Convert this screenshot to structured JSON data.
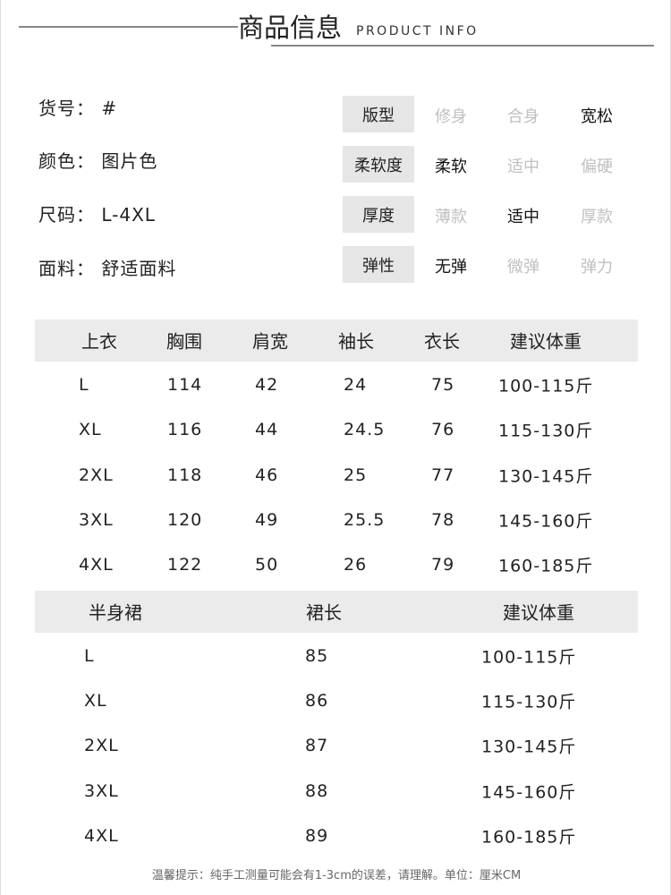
{
  "header": {
    "title": "商品信息",
    "subtitle": "PRODUCT INFO"
  },
  "info": [
    {
      "label": "货号",
      "value": "#"
    },
    {
      "label": "颜色",
      "value": "图片色"
    },
    {
      "label": "尺码",
      "value": "L-4XL"
    },
    {
      "label": "面料",
      "value": "舒适面料"
    }
  ],
  "attributes": [
    {
      "label": "版型",
      "options": [
        "修身",
        "合身",
        "宽松"
      ],
      "selected": 2
    },
    {
      "label": "柔软度",
      "options": [
        "柔软",
        "适中",
        "偏硬"
      ],
      "selected": 0
    },
    {
      "label": "厚度",
      "options": [
        "薄款",
        "适中",
        "厚款"
      ],
      "selected": 1
    },
    {
      "label": "弹性",
      "options": [
        "无弹",
        "微弹",
        "弹力"
      ],
      "selected": 0
    }
  ],
  "top_table": {
    "headers": [
      "上衣",
      "胸围",
      "肩宽",
      "袖长",
      "衣长",
      "建议体重"
    ],
    "rows": [
      [
        "L",
        "114",
        "42",
        "24",
        "75",
        "100-115斤"
      ],
      [
        "XL",
        "116",
        "44",
        "24.5",
        "76",
        "115-130斤"
      ],
      [
        "2XL",
        "118",
        "46",
        "25",
        "77",
        "130-145斤"
      ],
      [
        "3XL",
        "120",
        "49",
        "25.5",
        "78",
        "145-160斤"
      ],
      [
        "4XL",
        "122",
        "50",
        "26",
        "79",
        "160-185斤"
      ]
    ]
  },
  "skirt_table": {
    "headers": [
      "半身裙",
      "裙长",
      "建议体重"
    ],
    "rows": [
      [
        "L",
        "85",
        "100-115斤"
      ],
      [
        "XL",
        "86",
        "115-130斤"
      ],
      [
        "2XL",
        "87",
        "130-145斤"
      ],
      [
        "3XL",
        "88",
        "145-160斤"
      ],
      [
        "4XL",
        "89",
        "160-185斤"
      ]
    ]
  },
  "note": "温馨提示：纯手工测量可能会有1-3cm的误差，请理解。单位：厘米CM"
}
